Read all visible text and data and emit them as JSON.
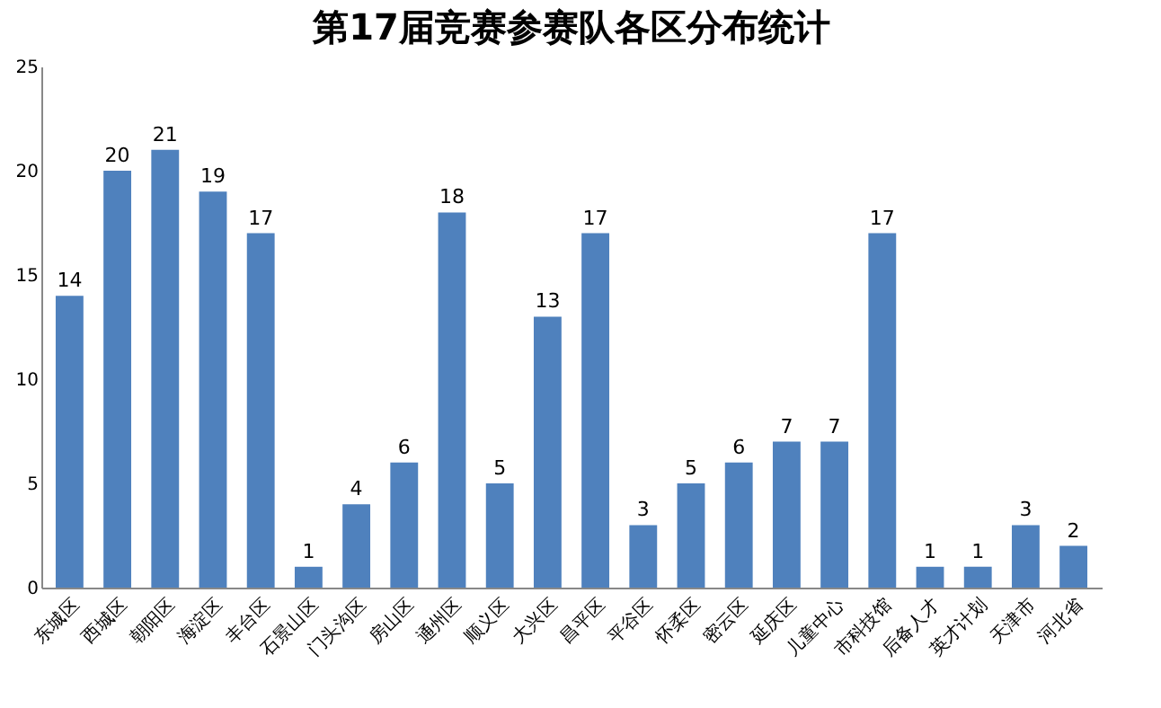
{
  "chart_data": {
    "type": "bar",
    "title": "第17届竞赛参赛队各区分布统计",
    "categories": [
      "东城区",
      "西城区",
      "朝阳区",
      "海淀区",
      "丰台区",
      "石景山区",
      "门头沟区",
      "房山区",
      "通州区",
      "顺义区",
      "大兴区",
      "昌平区",
      "平谷区",
      "怀柔区",
      "密云区",
      "延庆区",
      "儿童中心",
      "市科技馆",
      "后备人才",
      "英才计划",
      "天津市",
      "河北省"
    ],
    "values": [
      14,
      20,
      21,
      19,
      17,
      1,
      4,
      6,
      18,
      5,
      13,
      17,
      3,
      5,
      6,
      7,
      7,
      17,
      1,
      1,
      3,
      2
    ],
    "color": "#4f81bd",
    "ylim": [
      0,
      25
    ],
    "yticks": [
      0,
      5,
      10,
      15,
      20,
      25
    ],
    "grid": false,
    "data_labels": true
  }
}
